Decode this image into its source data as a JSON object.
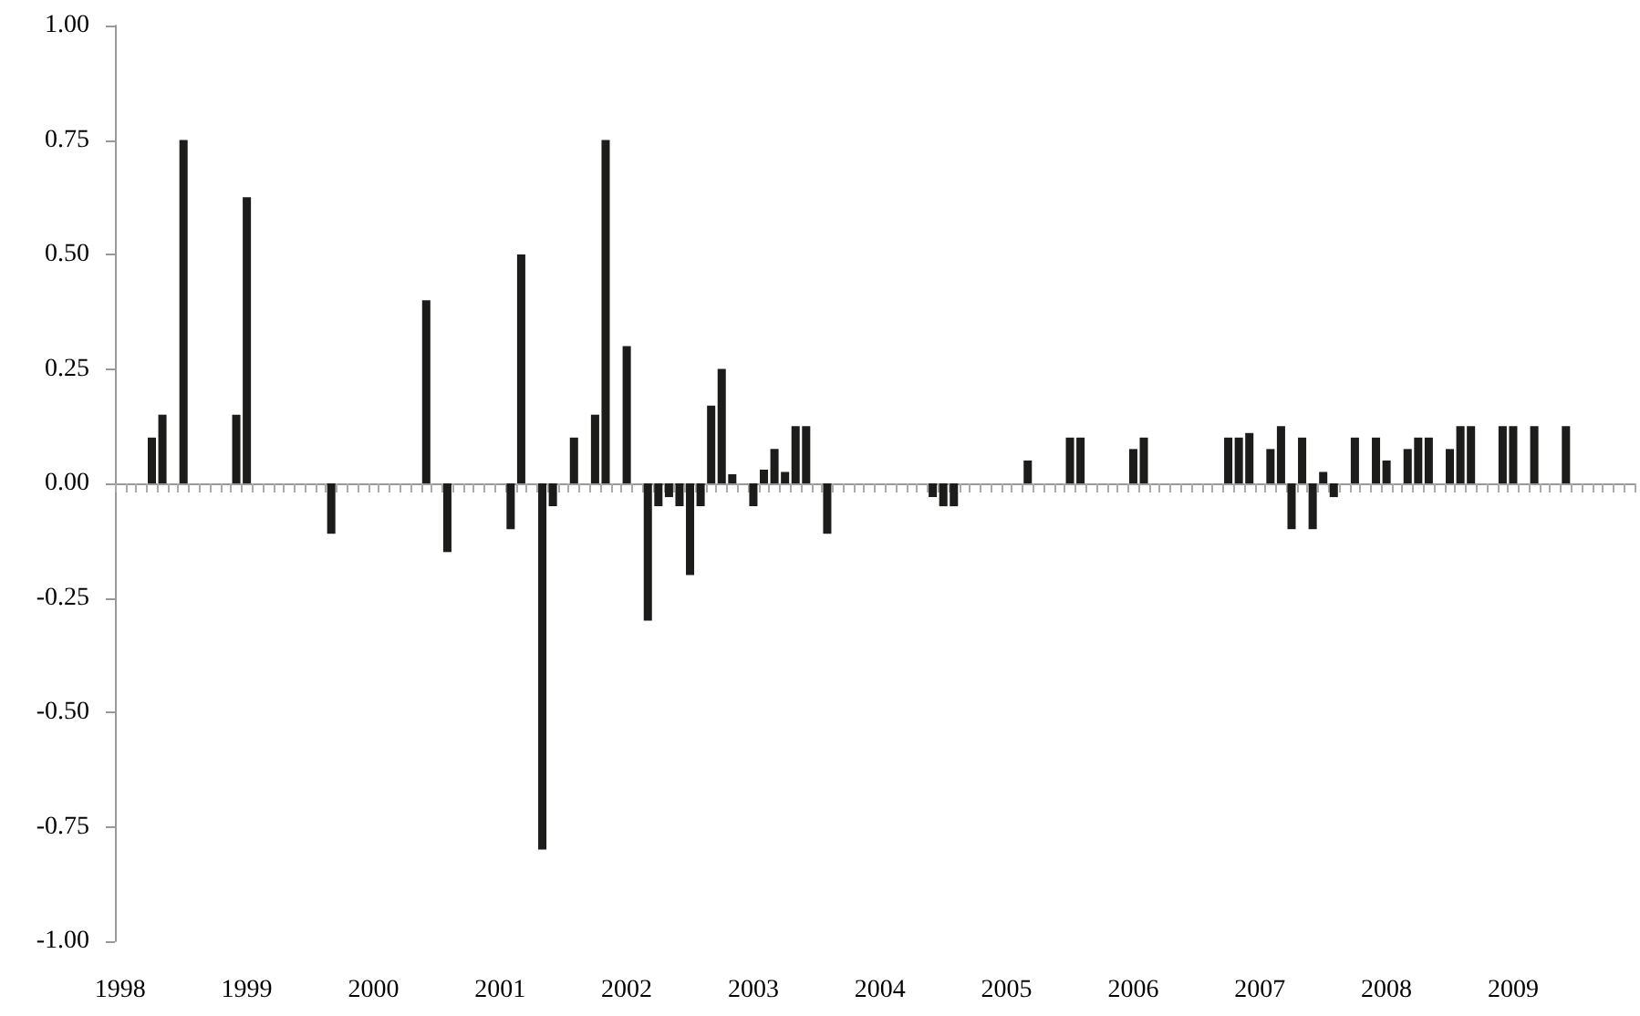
{
  "chart_data": {
    "type": "bar",
    "categories": [
      "1998",
      null,
      null,
      null,
      null,
      null,
      null,
      null,
      null,
      null,
      null,
      null,
      "1999",
      null,
      null,
      null,
      null,
      null,
      null,
      null,
      null,
      null,
      null,
      null,
      "2000",
      null,
      null,
      null,
      null,
      null,
      null,
      null,
      null,
      null,
      null,
      null,
      "2001",
      null,
      null,
      null,
      null,
      null,
      null,
      null,
      null,
      null,
      null,
      null,
      "2002",
      null,
      null,
      null,
      null,
      null,
      null,
      null,
      null,
      null,
      null,
      null,
      "2003",
      null,
      null,
      null,
      null,
      null,
      null,
      null,
      null,
      null,
      null,
      null,
      "2004",
      null,
      null,
      null,
      null,
      null,
      null,
      null,
      null,
      null,
      null,
      null,
      "2005",
      null,
      null,
      null,
      null,
      null,
      null,
      null,
      null,
      null,
      null,
      null,
      "2006",
      null,
      null,
      null,
      null,
      null,
      null,
      null,
      null,
      null,
      null,
      null,
      "2007",
      null,
      null,
      null,
      null,
      null,
      null,
      null,
      null,
      null,
      null,
      null,
      "2008",
      null,
      null,
      null,
      null,
      null,
      null,
      null,
      null,
      null,
      null,
      null,
      "2009",
      null,
      null,
      null,
      null,
      null,
      null,
      null,
      null,
      null,
      null,
      null
    ],
    "values": [
      null,
      null,
      null,
      0.1,
      0.15,
      null,
      0.75,
      null,
      null,
      null,
      null,
      0.15,
      0.625,
      null,
      null,
      null,
      null,
      null,
      null,
      null,
      -0.11,
      null,
      null,
      null,
      null,
      null,
      null,
      null,
      null,
      0.4,
      null,
      -0.15,
      null,
      null,
      null,
      null,
      null,
      -0.1,
      0.5,
      null,
      -0.8,
      -0.05,
      null,
      0.1,
      null,
      0.15,
      0.75,
      null,
      0.3,
      null,
      -0.3,
      -0.05,
      -0.03,
      -0.05,
      -0.2,
      -0.05,
      0.17,
      0.25,
      0.02,
      null,
      -0.05,
      0.03,
      0.075,
      0.025,
      0.125,
      0.125,
      null,
      -0.11,
      null,
      null,
      null,
      null,
      null,
      null,
      null,
      null,
      null,
      -0.03,
      -0.05,
      -0.05,
      null,
      null,
      null,
      null,
      null,
      null,
      0.05,
      null,
      null,
      null,
      0.1,
      0.1,
      null,
      null,
      null,
      null,
      0.075,
      0.1,
      null,
      null,
      null,
      null,
      null,
      null,
      null,
      0.1,
      0.1,
      0.11,
      null,
      0.075,
      0.125,
      -0.1,
      0.1,
      -0.1,
      0.025,
      -0.03,
      null,
      0.1,
      null,
      0.1,
      0.05,
      null,
      0.075,
      0.1,
      0.1,
      null,
      0.075,
      0.125,
      0.125,
      null,
      null,
      0.125,
      0.125,
      null,
      0.125,
      null,
      null,
      0.125,
      null,
      null,
      null,
      null,
      null,
      null
    ],
    "color": "#1c1c1a",
    "ylim": [
      -1,
      1
    ],
    "yticks": [
      {
        "value": -1,
        "label": "-1.00"
      },
      {
        "value": -0.75,
        "label": "-0.75"
      },
      {
        "value": -0.5,
        "label": "-0.50"
      },
      {
        "value": -0.25,
        "label": "-0.25"
      },
      {
        "value": 0,
        "label": "0.00"
      },
      {
        "value": 0.25,
        "label": "0.25"
      },
      {
        "value": 0.5,
        "label": "0.50"
      },
      {
        "value": 0.75,
        "label": "0.75"
      },
      {
        "value": 1,
        "label": "1.00"
      }
    ],
    "data_labels": false
  }
}
